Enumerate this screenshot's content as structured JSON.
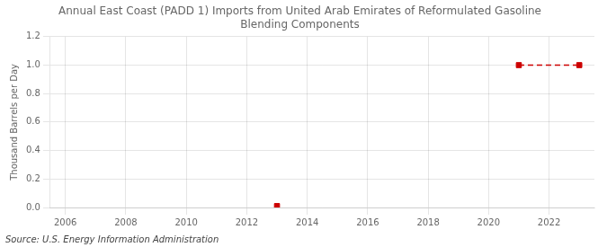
{
  "chart_data": {
    "type": "scatter",
    "title": "Annual East Coast (PADD 1) Imports from United Arab Emirates of Reformulated Gasoline\nBlending Components",
    "ylabel": "Thousand Barrels per Day",
    "annotations": [
      "Source: U.S. Energy Information Administration"
    ],
    "x": [
      2013,
      2021,
      2023
    ],
    "series": [
      {
        "type": "scatter",
        "color": "#cc0000",
        "marker": "square",
        "values": [
          0.01,
          1.0,
          1.0
        ]
      },
      {
        "type": "line",
        "color": "#cc0000",
        "line_style": "dashed",
        "values": [
          null,
          1.0,
          1.0
        ]
      }
    ],
    "xlim": [
      2005.5,
      2023.5
    ],
    "xticks": [
      2006,
      2008,
      2010,
      2012,
      2014,
      2016,
      2018,
      2020,
      2022
    ],
    "ylim": [
      0,
      1.2
    ],
    "yticks": [
      {
        "value": 0,
        "label": "0.0"
      },
      0.2,
      0.4,
      0.6,
      0.8,
      {
        "value": 1.0,
        "label": "1.0"
      },
      1.2
    ],
    "grid": true
  }
}
